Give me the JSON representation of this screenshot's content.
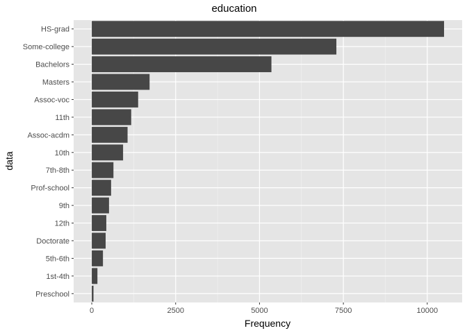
{
  "colors": {
    "panel_background": "#E5E5E5",
    "grid_major": "#FFFFFF",
    "grid_minor": "#F2F2F2",
    "bar_fill": "#474747",
    "tick_text": "#4D4D4D"
  },
  "chart_data": {
    "type": "bar",
    "orientation": "horizontal",
    "title": "education",
    "xlabel": "Frequency",
    "ylabel": "data",
    "categories": [
      "HS-grad",
      "Some-college",
      "Bachelors",
      "Masters",
      "Assoc-voc",
      "11th",
      "Assoc-acdm",
      "10th",
      "7th-8th",
      "Prof-school",
      "9th",
      "12th",
      "Doctorate",
      "5th-6th",
      "1st-4th",
      "Preschool"
    ],
    "values": [
      10501,
      7291,
      5355,
      1723,
      1382,
      1175,
      1067,
      933,
      646,
      576,
      514,
      433,
      413,
      333,
      168,
      51
    ],
    "xlim": [
      -540,
      11040
    ],
    "xticks": [
      0,
      2500,
      5000,
      7500,
      10000
    ],
    "xtick_labels": [
      "0",
      "2500",
      "5000",
      "7500",
      "10000"
    ],
    "grid": true,
    "legend": "none"
  }
}
